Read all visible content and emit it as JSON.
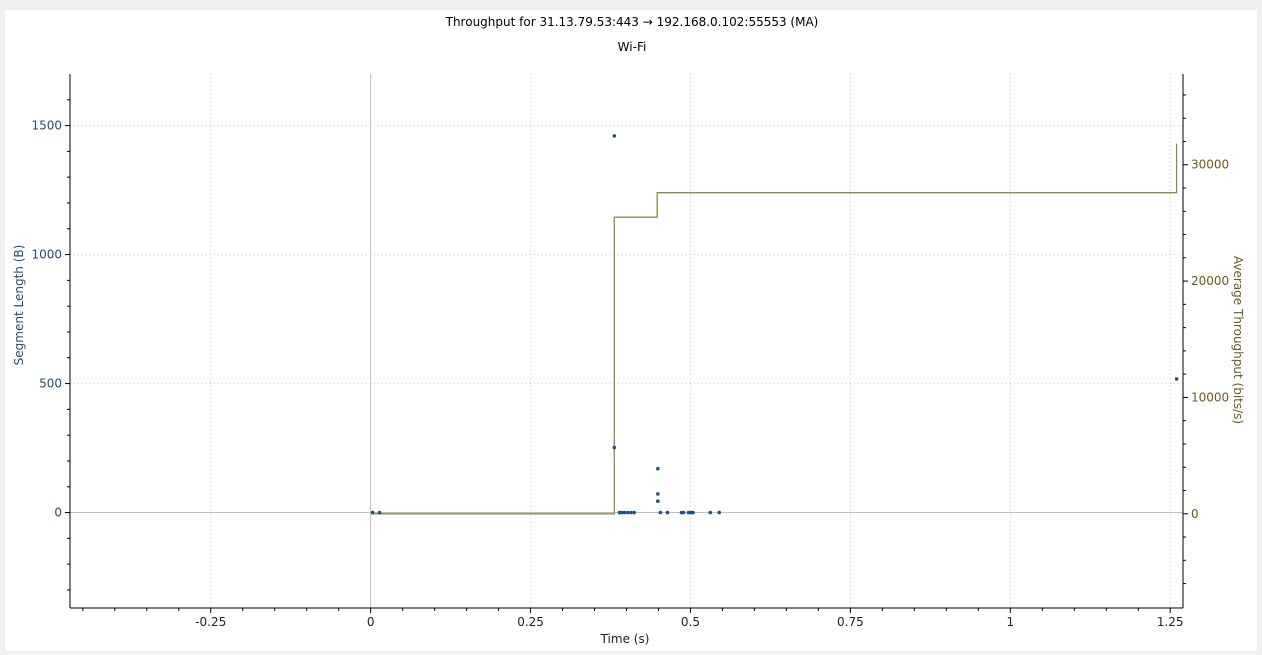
{
  "window": {
    "title": "Throughput for 31.13.79.53:443 → 192.168.0.102:55553 (MA)",
    "subtitle": "Wi-Fi"
  },
  "colors": {
    "segments": "#1f4e8c",
    "throughput": "#8c8c3c",
    "grid": "#c8c8c8",
    "zero_line": "#c0c0c0"
  },
  "chart_data": {
    "type": "scatter",
    "title": "Throughput for 31.13.79.53:443 → 192.168.0.102:55553 (MA)",
    "subtitle": "Wi-Fi",
    "xlabel": "Time (s)",
    "ylabel": "Segment Length (B)",
    "y2label": "Average Throughput (bits/s)",
    "xlim": [
      -0.47,
      1.27
    ],
    "ylim": [
      -370,
      1700
    ],
    "y2lim": [
      -8100,
      37800
    ],
    "x_ticks": [
      -0.25,
      0,
      0.25,
      0.5,
      0.75,
      1,
      1.25
    ],
    "x_tick_labels": [
      "-0.25",
      "0",
      "0.25",
      "0.5",
      "0.75",
      "1",
      "1.25"
    ],
    "y_ticks": [
      0,
      500,
      1000,
      1500
    ],
    "y_tick_labels": [
      "0",
      "500",
      "1000",
      "1500"
    ],
    "y2_ticks": [
      0,
      10000,
      20000,
      30000
    ],
    "y2_tick_labels": [
      "0",
      "10000",
      "20000",
      "30000"
    ],
    "grid": true,
    "series": [
      {
        "kind": "scatter",
        "axis": "left",
        "points": [
          [
            0.003,
            0
          ],
          [
            0.014,
            0
          ],
          [
            0.381,
            1460
          ],
          [
            0.381,
            252
          ],
          [
            0.389,
            0
          ],
          [
            0.393,
            0
          ],
          [
            0.397,
            0
          ],
          [
            0.402,
            0
          ],
          [
            0.407,
            0
          ],
          [
            0.412,
            0
          ],
          [
            0.449,
            170
          ],
          [
            0.449,
            72
          ],
          [
            0.449,
            44
          ],
          [
            0.453,
            0
          ],
          [
            0.464,
            0
          ],
          [
            0.486,
            0
          ],
          [
            0.489,
            0
          ],
          [
            0.497,
            0
          ],
          [
            0.501,
            0
          ],
          [
            0.504,
            0
          ],
          [
            0.531,
            0
          ],
          [
            0.545,
            0
          ],
          [
            1.26,
            518
          ]
        ]
      },
      {
        "kind": "step",
        "axis": "right",
        "points": [
          [
            0.003,
            0
          ],
          [
            0.381,
            0
          ],
          [
            0.381,
            25500
          ],
          [
            0.448,
            25500
          ],
          [
            0.448,
            27600
          ],
          [
            1.26,
            27600
          ],
          [
            1.26,
            31800
          ]
        ]
      }
    ]
  }
}
